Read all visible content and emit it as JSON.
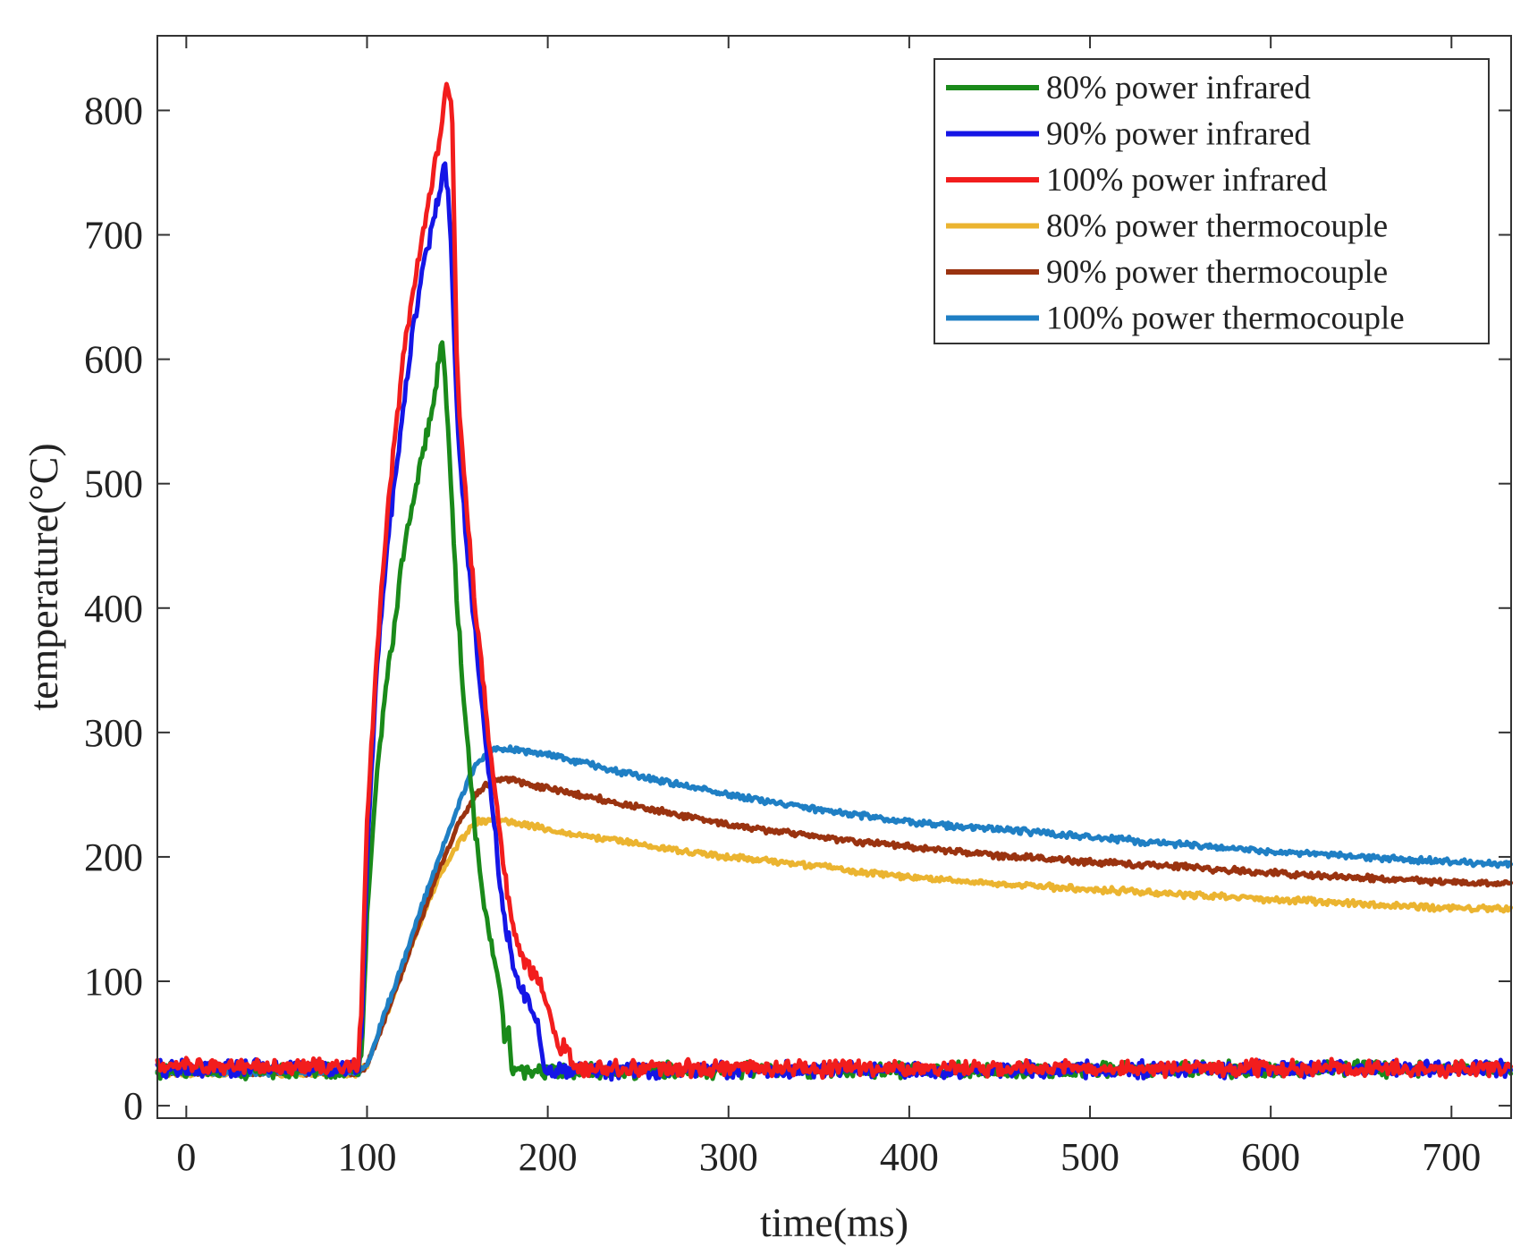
{
  "chart_data": {
    "type": "line",
    "title": "",
    "xlabel": "time(ms)",
    "ylabel": "temperature(°C)",
    "xlim": [
      -16,
      733
    ],
    "ylim": [
      -10,
      860
    ],
    "xticks": [
      0,
      100,
      200,
      300,
      400,
      500,
      600,
      700
    ],
    "yticks": [
      0,
      100,
      200,
      300,
      400,
      500,
      600,
      700,
      800
    ],
    "grid": false,
    "legend_position": "top-right",
    "series": [
      {
        "name": "80% power infrared",
        "color": "#1a8a1a",
        "points": [
          [
            -16,
            28
          ],
          [
            95,
            28
          ],
          [
            97,
            45
          ],
          [
            100,
            150
          ],
          [
            105,
            260
          ],
          [
            110,
            330
          ],
          [
            115,
            385
          ],
          [
            120,
            445
          ],
          [
            125,
            480
          ],
          [
            130,
            520
          ],
          [
            135,
            550
          ],
          [
            140,
            600
          ],
          [
            142,
            612
          ],
          [
            145,
            540
          ],
          [
            150,
            400
          ],
          [
            155,
            300
          ],
          [
            160,
            220
          ],
          [
            165,
            160
          ],
          [
            170,
            120
          ],
          [
            174,
            95
          ],
          [
            176,
            50
          ],
          [
            178,
            70
          ],
          [
            180,
            28
          ],
          [
            200,
            28
          ],
          [
            733,
            30
          ]
        ]
      },
      {
        "name": "90% power infrared",
        "color": "#1515e6",
        "points": [
          [
            -16,
            30
          ],
          [
            95,
            30
          ],
          [
            97,
            60
          ],
          [
            100,
            200
          ],
          [
            105,
            340
          ],
          [
            110,
            430
          ],
          [
            115,
            500
          ],
          [
            120,
            560
          ],
          [
            125,
            620
          ],
          [
            130,
            665
          ],
          [
            135,
            700
          ],
          [
            140,
            735
          ],
          [
            143,
            760
          ],
          [
            146,
            710
          ],
          [
            150,
            550
          ],
          [
            155,
            450
          ],
          [
            160,
            380
          ],
          [
            165,
            300
          ],
          [
            170,
            230
          ],
          [
            175,
            160
          ],
          [
            180,
            120
          ],
          [
            185,
            95
          ],
          [
            190,
            80
          ],
          [
            195,
            60
          ],
          [
            198,
            28
          ],
          [
            205,
            28
          ],
          [
            733,
            30
          ]
        ]
      },
      {
        "name": "100% power infrared",
        "color": "#f21d1d",
        "points": [
          [
            -16,
            32
          ],
          [
            95,
            32
          ],
          [
            97,
            80
          ],
          [
            100,
            230
          ],
          [
            105,
            350
          ],
          [
            110,
            455
          ],
          [
            115,
            530
          ],
          [
            120,
            600
          ],
          [
            125,
            650
          ],
          [
            130,
            695
          ],
          [
            135,
            735
          ],
          [
            140,
            775
          ],
          [
            144,
            820
          ],
          [
            147,
            800
          ],
          [
            150,
            580
          ],
          [
            155,
            480
          ],
          [
            160,
            400
          ],
          [
            165,
            330
          ],
          [
            170,
            260
          ],
          [
            175,
            200
          ],
          [
            180,
            150
          ],
          [
            185,
            120
          ],
          [
            190,
            110
          ],
          [
            195,
            100
          ],
          [
            200,
            85
          ],
          [
            205,
            50
          ],
          [
            210,
            45
          ],
          [
            215,
            30
          ],
          [
            733,
            30
          ]
        ]
      },
      {
        "name": "80% power thermocouple",
        "color": "#ebb430",
        "points": [
          [
            -16,
            26
          ],
          [
            95,
            26
          ],
          [
            100,
            32
          ],
          [
            110,
            70
          ],
          [
            120,
            110
          ],
          [
            130,
            150
          ],
          [
            140,
            185
          ],
          [
            150,
            210
          ],
          [
            160,
            228
          ],
          [
            170,
            230
          ],
          [
            180,
            228
          ],
          [
            200,
            222
          ],
          [
            250,
            210
          ],
          [
            300,
            200
          ],
          [
            350,
            192
          ],
          [
            400,
            184
          ],
          [
            450,
            178
          ],
          [
            500,
            174
          ],
          [
            550,
            170
          ],
          [
            600,
            166
          ],
          [
            650,
            162
          ],
          [
            700,
            159
          ],
          [
            733,
            158
          ]
        ]
      },
      {
        "name": "90% power thermocouple",
        "color": "#9a3310",
        "points": [
          [
            -16,
            27
          ],
          [
            95,
            27
          ],
          [
            100,
            32
          ],
          [
            110,
            70
          ],
          [
            120,
            110
          ],
          [
            130,
            150
          ],
          [
            140,
            190
          ],
          [
            150,
            225
          ],
          [
            160,
            250
          ],
          [
            170,
            262
          ],
          [
            180,
            262
          ],
          [
            200,
            255
          ],
          [
            250,
            240
          ],
          [
            300,
            226
          ],
          [
            350,
            216
          ],
          [
            400,
            208
          ],
          [
            450,
            201
          ],
          [
            500,
            196
          ],
          [
            550,
            192
          ],
          [
            600,
            187
          ],
          [
            650,
            183
          ],
          [
            700,
            180
          ],
          [
            733,
            178
          ]
        ]
      },
      {
        "name": "100% power thermocouple",
        "color": "#1f7fc4",
        "points": [
          [
            -16,
            27
          ],
          [
            95,
            27
          ],
          [
            100,
            32
          ],
          [
            110,
            75
          ],
          [
            120,
            115
          ],
          [
            130,
            160
          ],
          [
            140,
            200
          ],
          [
            150,
            240
          ],
          [
            160,
            275
          ],
          [
            170,
            287
          ],
          [
            180,
            287
          ],
          [
            200,
            282
          ],
          [
            250,
            265
          ],
          [
            300,
            250
          ],
          [
            350,
            238
          ],
          [
            400,
            228
          ],
          [
            450,
            222
          ],
          [
            500,
            216
          ],
          [
            550,
            210
          ],
          [
            600,
            204
          ],
          [
            650,
            200
          ],
          [
            700,
            196
          ],
          [
            733,
            194
          ]
        ]
      }
    ]
  }
}
